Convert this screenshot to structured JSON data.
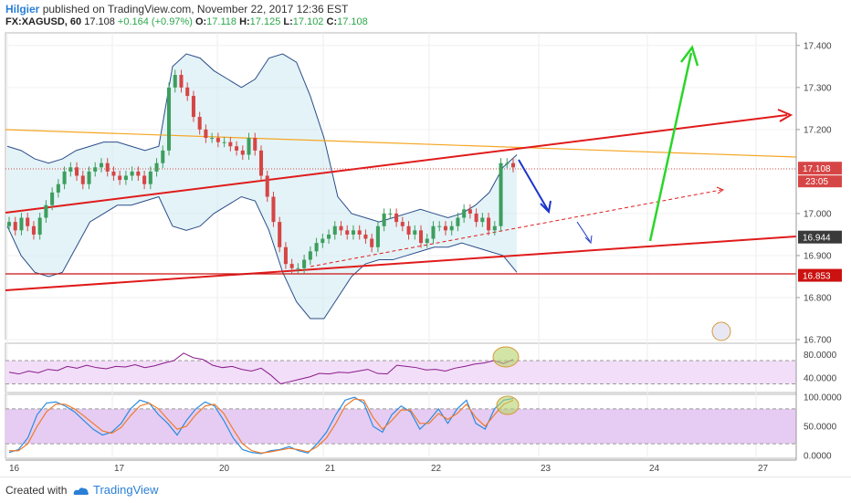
{
  "header": {
    "author": "Hilgier",
    "published": "published on TradingView.com, November 22, 2017 12:36 EST",
    "symbol": "FX:XAGUSD, 60",
    "last": "17.108",
    "change": "+0.164 (+0.97%)",
    "o_label": "O:",
    "o": "17.118",
    "h_label": "H:",
    "h": "17.125",
    "l_label": "L:",
    "l": "17.102",
    "c_label": "C:",
    "c": "17.108"
  },
  "footer": {
    "created": "Created with",
    "brand": "TradingView"
  },
  "colors": {
    "up": "#3d9e5e",
    "down": "#d64545",
    "bands": "#2b4d8a",
    "trend": "#e01b1b",
    "green_arrow": "#29d629",
    "blue_arrow": "#1a35c9",
    "orange": "#f5a623",
    "rsi": "#8a1a8a"
  },
  "chart_data": [
    {
      "type": "line",
      "x_ticks": [
        "16",
        "17",
        "20",
        "21",
        "22",
        "23",
        "24",
        "27"
      ],
      "y_ticks": [
        "17.400",
        "17.300",
        "17.200",
        "17.000",
        "16.900",
        "16.800",
        "16.700"
      ],
      "ylim": [
        16.7,
        17.43
      ],
      "price_labels": [
        {
          "value": 17.108,
          "text": "17.108",
          "sub": "23:05",
          "color": "#d64545"
        },
        {
          "value": 16.944,
          "text": "16.944",
          "color": "#3a3a3a"
        },
        {
          "value": 16.853,
          "text": "16.853",
          "color": "#cc1111"
        }
      ],
      "series": [
        {
          "values": [
            16.98,
            16.96,
            16.99,
            16.97,
            16.95,
            16.99,
            17.02,
            17.05,
            17.07,
            17.1,
            17.11,
            17.09,
            17.07,
            17.1,
            17.11,
            17.12,
            17.1,
            17.09,
            17.08,
            17.09,
            17.1,
            17.09,
            17.07,
            17.1,
            17.12,
            17.15,
            17.3,
            17.33,
            17.3,
            17.28,
            17.23,
            17.2,
            17.18,
            17.18,
            17.17,
            17.17,
            17.16,
            17.15,
            17.14,
            17.18,
            17.15,
            17.09,
            17.04,
            16.98,
            16.92,
            16.88,
            16.87,
            16.87,
            16.89,
            16.91,
            16.93,
            16.94,
            16.95,
            16.97,
            16.96,
            16.95,
            16.96,
            16.95,
            16.94,
            16.92,
            16.97,
            17.0,
            17.0,
            16.98,
            16.97,
            16.95,
            16.96,
            16.93,
            16.94,
            16.97,
            16.97,
            16.96,
            16.97,
            16.99,
            17.01,
            17.0,
            16.98,
            16.99,
            16.96,
            16.97,
            17.12,
            17.12,
            17.11
          ]
        }
      ],
      "bollinger": {
        "upper": [
          17.16,
          17.15,
          17.13,
          17.12,
          17.13,
          17.15,
          17.16,
          17.17,
          17.17,
          17.16,
          17.15,
          17.16,
          17.35,
          17.38,
          17.37,
          17.34,
          17.32,
          17.3,
          17.32,
          17.37,
          17.38,
          17.36,
          17.28,
          17.18,
          17.04,
          17.0,
          16.99,
          16.98,
          16.99,
          17.0,
          17.01,
          17.0,
          16.99,
          17.0,
          17.02,
          17.05,
          17.11,
          17.14
        ],
        "lower": [
          16.97,
          16.9,
          16.86,
          16.85,
          16.86,
          16.92,
          16.98,
          17.0,
          17.02,
          17.02,
          17.03,
          17.04,
          16.97,
          16.96,
          16.97,
          17.0,
          17.02,
          17.04,
          17.03,
          16.96,
          16.86,
          16.79,
          16.75,
          16.75,
          16.8,
          16.85,
          16.88,
          16.89,
          16.89,
          16.9,
          16.91,
          16.92,
          16.92,
          16.93,
          16.92,
          16.91,
          16.9,
          16.86
        ]
      }
    },
    {
      "type": "line",
      "y_ticks": [
        "80.0000",
        "40.0000"
      ],
      "ylim": [
        15,
        100
      ],
      "series": [
        {
          "values": [
            50,
            47,
            52,
            49,
            55,
            53,
            60,
            57,
            62,
            58,
            56,
            60,
            59,
            63,
            58,
            61,
            66,
            70,
            83,
            75,
            72,
            62,
            58,
            60,
            55,
            52,
            57,
            45,
            30,
            34,
            38,
            42,
            48,
            47,
            50,
            49,
            52,
            55,
            48,
            47,
            62,
            60,
            58,
            54,
            55,
            52,
            57,
            60,
            64,
            66,
            70,
            65,
            72
          ]
        }
      ]
    },
    {
      "type": "line",
      "y_ticks": [
        "100.0000",
        "50.0000",
        "0.0000"
      ],
      "ylim": [
        -5,
        105
      ],
      "series": [
        {
          "values": [
            5,
            10,
            30,
            70,
            90,
            92,
            85,
            75,
            60,
            45,
            35,
            40,
            55,
            80,
            95,
            90,
            70,
            55,
            35,
            60,
            80,
            92,
            85,
            60,
            30,
            10,
            5,
            3,
            8,
            10,
            15,
            8,
            4,
            20,
            40,
            70,
            95,
            100,
            90,
            50,
            40,
            70,
            85,
            75,
            45,
            60,
            80,
            55,
            80,
            95,
            55,
            45,
            80,
            95,
            98
          ]
        },
        {
          "values": [
            8,
            8,
            20,
            50,
            75,
            88,
            88,
            80,
            68,
            55,
            42,
            38,
            48,
            68,
            85,
            90,
            80,
            62,
            45,
            50,
            70,
            85,
            88,
            72,
            45,
            20,
            8,
            4,
            6,
            9,
            12,
            10,
            6,
            15,
            30,
            55,
            85,
            97,
            95,
            65,
            45,
            60,
            78,
            78,
            55,
            55,
            72,
            62,
            72,
            88,
            65,
            50,
            70,
            88,
            95
          ]
        }
      ]
    }
  ]
}
